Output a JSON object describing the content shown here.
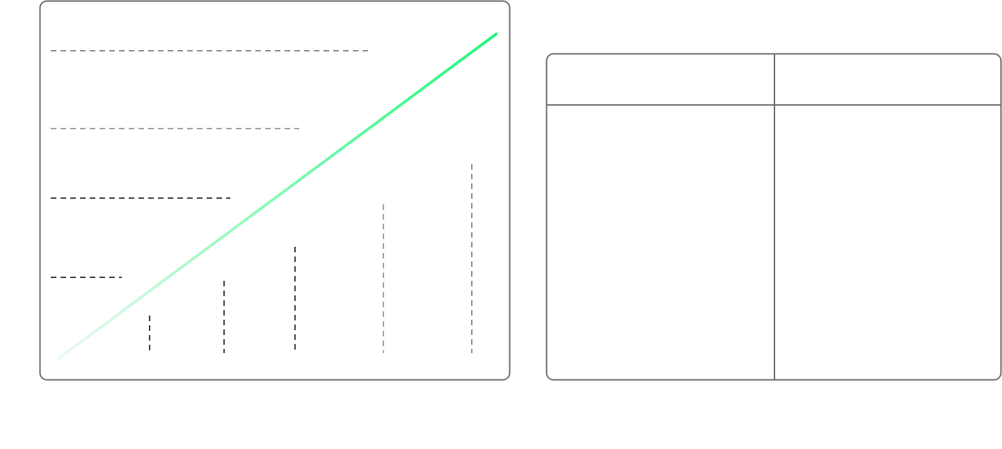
{
  "colors": {
    "frame": "#6b6b6b",
    "background": "#ffffff",
    "trend_line_start": "#eafaf0",
    "trend_line_end": "#1ef87a",
    "dash_dark": "#3a3a3a",
    "dash_mid": "#8a8a8a",
    "dash_light": "#a0a0a0"
  },
  "chart_panel": {
    "trend": {
      "direction": "increasing",
      "gradient": true
    },
    "horizontal_guides": [
      {
        "level": 4,
        "tone": "dash_mid"
      },
      {
        "level": 3,
        "tone": "dash_light"
      },
      {
        "level": 2,
        "tone": "dash_dark"
      },
      {
        "level": 1,
        "tone": "dash_dark"
      }
    ],
    "vertical_bars": [
      {
        "level": 1,
        "tone": "dash_dark"
      },
      {
        "level": 2,
        "tone": "dash_dark"
      },
      {
        "level": 3,
        "tone": "dash_dark"
      },
      {
        "level": 4,
        "tone": "dash_light"
      },
      {
        "level": 5,
        "tone": "dash_mid"
      }
    ]
  },
  "table_panel": {
    "columns": 2,
    "has_header_row": true,
    "headers": [
      "",
      ""
    ],
    "rows": []
  }
}
